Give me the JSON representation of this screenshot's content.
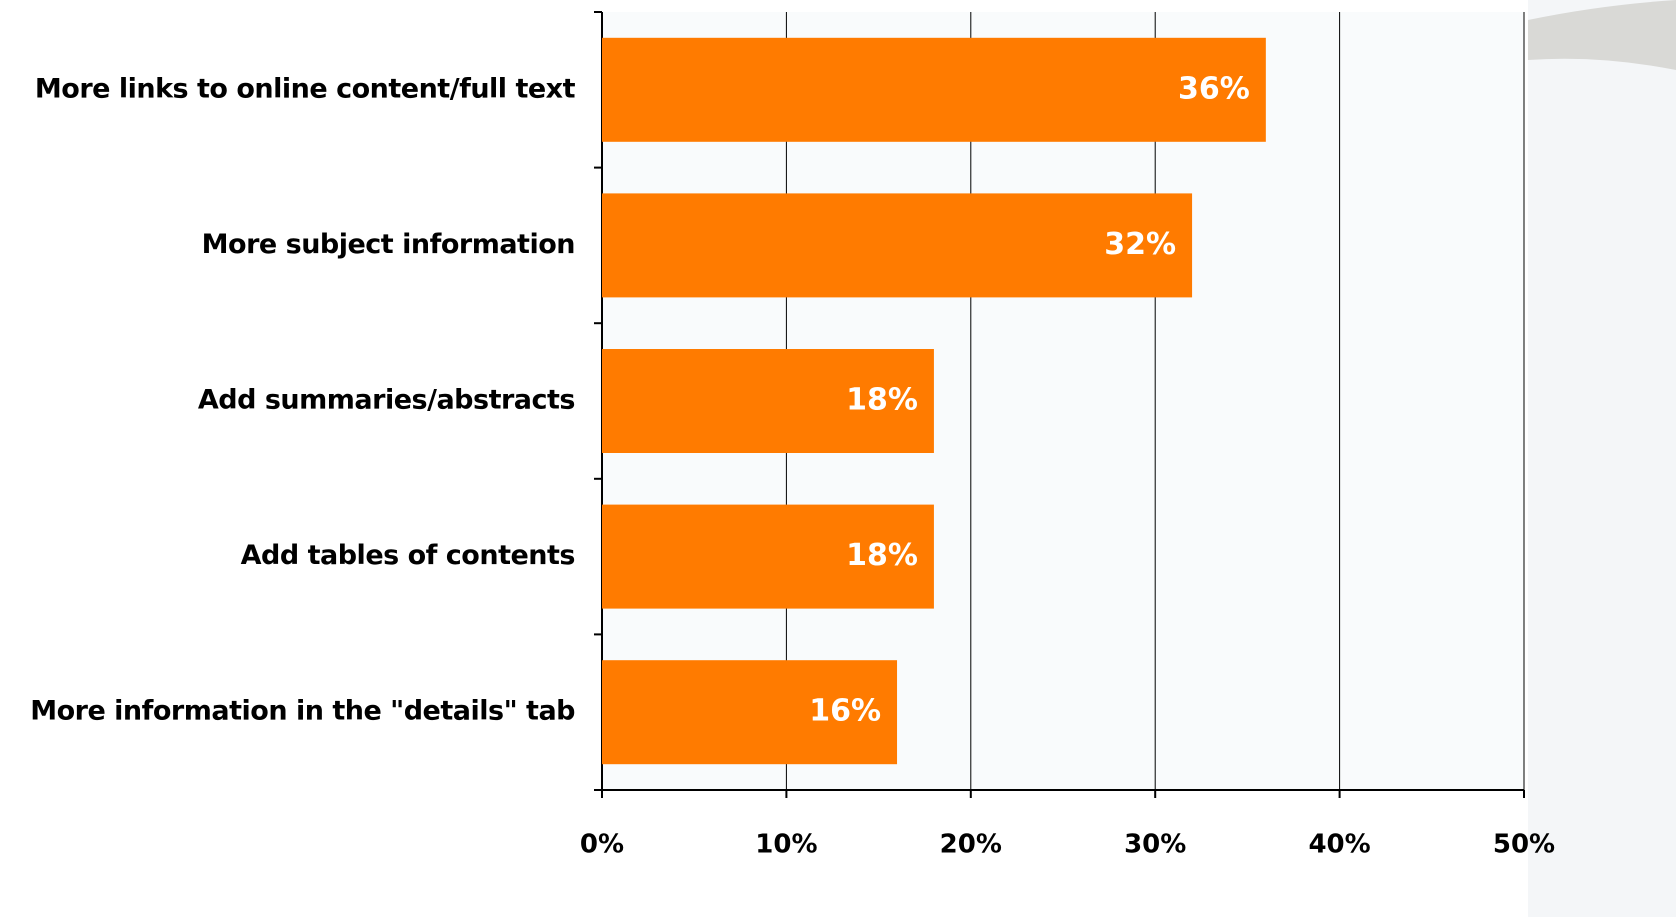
{
  "chart_data": {
    "type": "bar",
    "orientation": "horizontal",
    "categories": [
      "More links to online content/full text",
      "More subject information",
      "Add summaries/abstracts",
      "Add tables of contents",
      "More information in the \"details\" tab"
    ],
    "values": [
      36,
      32,
      18,
      18,
      16
    ],
    "value_labels": [
      "36%",
      "32%",
      "18%",
      "18%",
      "16%"
    ],
    "color": "#ff7b00",
    "xlim": [
      0,
      50
    ],
    "xticks": [
      {
        "value": 0,
        "label": "0%"
      },
      {
        "value": 10,
        "label": "10%"
      },
      {
        "value": 20,
        "label": "20%"
      },
      {
        "value": 30,
        "label": "30%"
      },
      {
        "value": 40,
        "label": "40%"
      },
      {
        "value": 50,
        "label": "50%"
      }
    ],
    "grid": true
  }
}
